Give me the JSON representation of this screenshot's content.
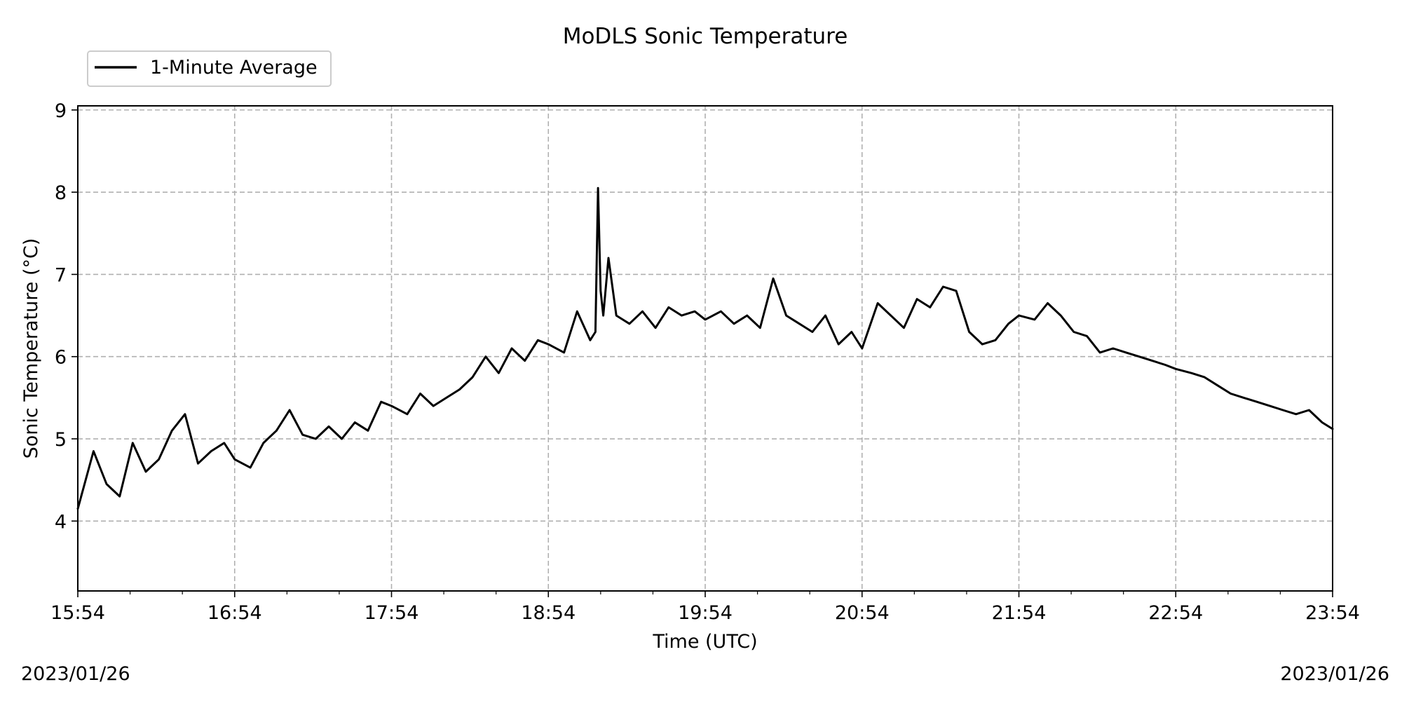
{
  "chart_data": {
    "type": "line",
    "title": "MoDLS Sonic Temperature",
    "xlabel": "Time (UTC)",
    "ylabel": "Sonic Temperature ($^\\circ$C)",
    "ylabel_display": "Sonic Temperature (°C)",
    "date_left": "2023/01/26",
    "date_right": "2023/01/26",
    "xlim": [
      "15:54",
      "23:54"
    ],
    "ylim": [
      3.15,
      9.05
    ],
    "x_ticks": [
      "15:54",
      "16:54",
      "17:54",
      "18:54",
      "19:54",
      "20:54",
      "21:54",
      "22:54",
      "23:54"
    ],
    "y_ticks": [
      4,
      5,
      6,
      7,
      8,
      9
    ],
    "grid": true,
    "legend_position": "top-left, above plot",
    "series": [
      {
        "name": "1-Minute Average",
        "color": "#000000",
        "x": [
          "15:54",
          "16:00",
          "16:05",
          "16:10",
          "16:15",
          "16:20",
          "16:25",
          "16:30",
          "16:35",
          "16:40",
          "16:45",
          "16:50",
          "16:54",
          "17:00",
          "17:05",
          "17:10",
          "17:15",
          "17:20",
          "17:25",
          "17:30",
          "17:35",
          "17:40",
          "17:45",
          "17:50",
          "17:54",
          "18:00",
          "18:05",
          "18:10",
          "18:15",
          "18:20",
          "18:25",
          "18:30",
          "18:35",
          "18:40",
          "18:45",
          "18:50",
          "18:54",
          "19:00",
          "19:05",
          "19:10",
          "19:12",
          "19:13",
          "19:14",
          "19:15",
          "19:17",
          "19:20",
          "19:25",
          "19:30",
          "19:35",
          "19:40",
          "19:45",
          "19:50",
          "19:54",
          "20:00",
          "20:05",
          "20:10",
          "20:15",
          "20:20",
          "20:25",
          "20:30",
          "20:35",
          "20:40",
          "20:45",
          "20:50",
          "20:54",
          "21:00",
          "21:05",
          "21:10",
          "21:15",
          "21:20",
          "21:25",
          "21:30",
          "21:35",
          "21:40",
          "21:45",
          "21:50",
          "21:54",
          "22:00",
          "22:05",
          "22:10",
          "22:15",
          "22:20",
          "22:25",
          "22:30",
          "22:35",
          "22:40",
          "22:45",
          "22:50",
          "22:54",
          "23:00",
          "23:05",
          "23:10",
          "23:15",
          "23:20",
          "23:25",
          "23:30",
          "23:35",
          "23:40",
          "23:45",
          "23:50",
          "23:54"
        ],
        "values": [
          4.15,
          4.85,
          4.45,
          4.3,
          4.95,
          4.6,
          4.75,
          5.1,
          5.3,
          4.7,
          4.85,
          4.95,
          4.75,
          4.65,
          4.95,
          5.1,
          5.35,
          5.05,
          5.0,
          5.15,
          5.0,
          5.2,
          5.1,
          5.45,
          5.4,
          5.3,
          5.55,
          5.4,
          5.5,
          5.6,
          5.75,
          6.0,
          5.8,
          6.1,
          5.95,
          6.2,
          6.15,
          6.05,
          6.55,
          6.2,
          6.3,
          8.05,
          6.8,
          6.5,
          7.2,
          6.5,
          6.4,
          6.55,
          6.35,
          6.6,
          6.5,
          6.55,
          6.45,
          6.55,
          6.4,
          6.5,
          6.35,
          6.95,
          6.5,
          6.4,
          6.3,
          6.5,
          6.15,
          6.3,
          6.1,
          6.65,
          6.5,
          6.35,
          6.7,
          6.6,
          6.85,
          6.8,
          6.3,
          6.15,
          6.2,
          6.4,
          6.5,
          6.45,
          6.65,
          6.5,
          6.3,
          6.25,
          6.05,
          6.1,
          6.05,
          6.0,
          5.95,
          5.9,
          5.85,
          5.8,
          5.75,
          5.65,
          5.55,
          5.5,
          5.45,
          5.4,
          5.35,
          5.3,
          5.35,
          5.2,
          5.12
        ]
      }
    ]
  }
}
